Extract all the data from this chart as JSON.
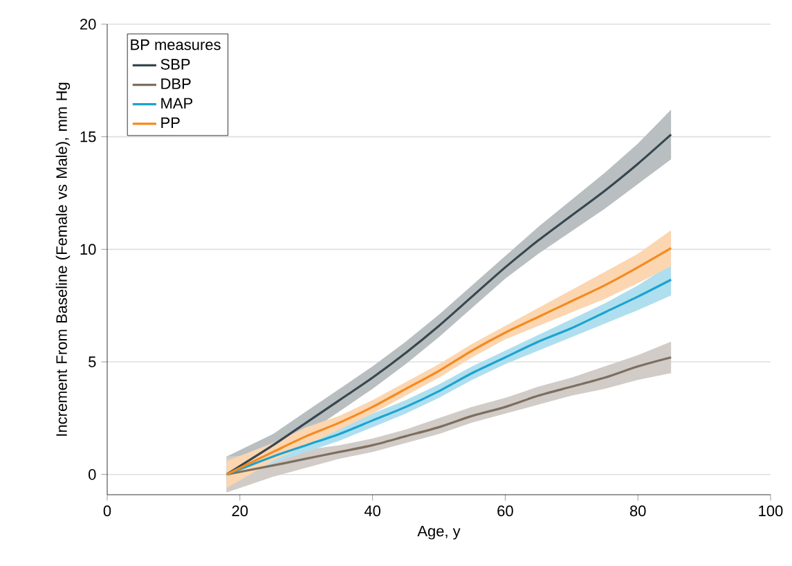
{
  "chart_data": {
    "type": "line",
    "xlabel": "Age, y",
    "ylabel": "Increment From Baseline (Female vs Male), mm Hg",
    "legend_title": "BP measures",
    "xlim": [
      0,
      100
    ],
    "ylim": [
      -0.9,
      20
    ],
    "xticks": [
      0,
      20,
      40,
      60,
      80,
      100
    ],
    "yticks": [
      0,
      5,
      10,
      15,
      20
    ],
    "grid": "y",
    "legend": "top left",
    "line_style": "solid",
    "marker": "none",
    "x": [
      18,
      25,
      30,
      35,
      40,
      45,
      50,
      55,
      60,
      65,
      70,
      75,
      80,
      85
    ],
    "series": [
      {
        "name": "SBP",
        "color": "#37474f",
        "values": [
          0,
          1.3,
          2.3,
          3.3,
          4.3,
          5.4,
          6.6,
          7.9,
          9.2,
          10.4,
          11.5,
          12.6,
          13.8,
          15.1
        ],
        "lower": [
          -0.8,
          0.8,
          1.8,
          2.8,
          3.8,
          4.9,
          6.1,
          7.4,
          8.7,
          9.8,
          10.8,
          11.8,
          12.9,
          14.0
        ],
        "upper": [
          0.8,
          1.8,
          2.8,
          3.8,
          4.8,
          5.9,
          7.1,
          8.4,
          9.7,
          11.0,
          12.2,
          13.4,
          14.7,
          16.2
        ]
      },
      {
        "name": "DBP",
        "color": "#7d6e60",
        "values": [
          0,
          0.4,
          0.7,
          1.0,
          1.3,
          1.7,
          2.1,
          2.6,
          3.0,
          3.5,
          3.9,
          4.3,
          4.8,
          5.2
        ],
        "lower": [
          -0.8,
          -0.1,
          0.3,
          0.7,
          1.0,
          1.4,
          1.8,
          2.3,
          2.7,
          3.1,
          3.5,
          3.8,
          4.2,
          4.5
        ],
        "upper": [
          0.8,
          0.9,
          1.1,
          1.3,
          1.6,
          2.0,
          2.5,
          3.0,
          3.4,
          3.9,
          4.3,
          4.8,
          5.3,
          5.9
        ]
      },
      {
        "name": "MAP",
        "color": "#1ba3d0",
        "values": [
          0,
          0.8,
          1.3,
          1.8,
          2.4,
          3.0,
          3.7,
          4.5,
          5.2,
          5.9,
          6.5,
          7.2,
          7.9,
          8.65
        ],
        "lower": [
          -0.4,
          0.5,
          1.0,
          1.5,
          2.1,
          2.7,
          3.4,
          4.2,
          4.9,
          5.5,
          6.1,
          6.7,
          7.3,
          7.95
        ],
        "upper": [
          0.4,
          1.1,
          1.6,
          2.1,
          2.7,
          3.3,
          4.0,
          4.8,
          5.5,
          6.2,
          6.9,
          7.6,
          8.4,
          9.35
        ]
      },
      {
        "name": "PP",
        "color": "#f58a1f",
        "values": [
          0,
          1.0,
          1.7,
          2.3,
          3.0,
          3.8,
          4.6,
          5.5,
          6.3,
          7.0,
          7.7,
          8.4,
          9.2,
          10.05
        ],
        "lower": [
          -0.6,
          0.6,
          1.3,
          2.0,
          2.7,
          3.5,
          4.3,
          5.2,
          6.0,
          6.6,
          7.2,
          7.8,
          8.5,
          9.25
        ],
        "upper": [
          0.6,
          1.4,
          2.1,
          2.6,
          3.3,
          4.1,
          4.9,
          5.8,
          6.6,
          7.4,
          8.2,
          9.0,
          9.8,
          10.85
        ]
      }
    ]
  }
}
